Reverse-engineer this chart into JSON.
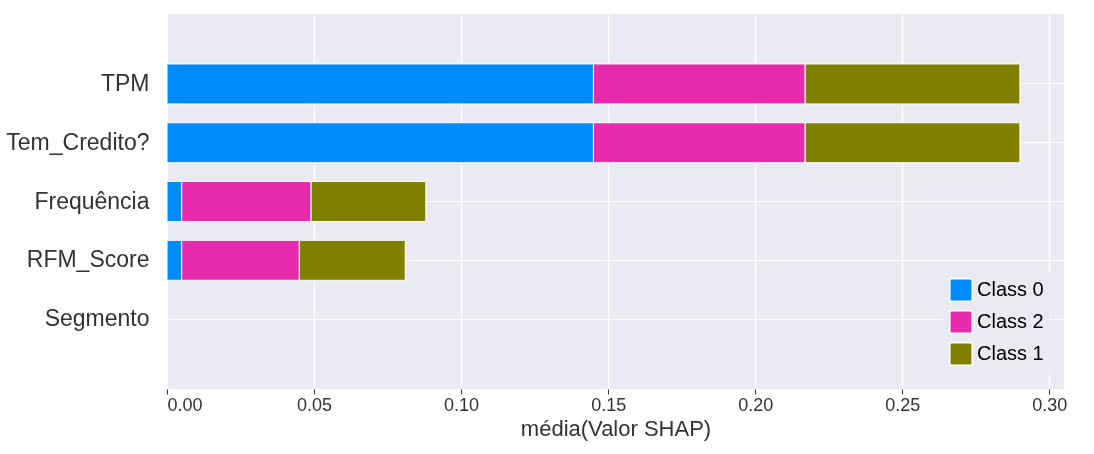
{
  "chart_data": {
    "type": "bar",
    "orientation": "horizontal",
    "stacked": true,
    "xlabel": "média(Valor SHAP)",
    "categories": [
      "TPM",
      "Tem_Credito?",
      "Frequência",
      "RFM_Score",
      "Segmento"
    ],
    "series": [
      {
        "name": "Class 0",
        "color": "#008bfb",
        "values": [
          0.145,
          0.145,
          0.005,
          0.005,
          0
        ]
      },
      {
        "name": "Class 2",
        "color": "#e82bad",
        "values": [
          0.072,
          0.072,
          0.044,
          0.04,
          0
        ]
      },
      {
        "name": "Class 1",
        "color": "#808000",
        "values": [
          0.073,
          0.073,
          0.039,
          0.036,
          0
        ]
      }
    ],
    "xlim": [
      0,
      0.305
    ],
    "xticks": [
      {
        "value": 0,
        "label": "0.00"
      },
      {
        "value": 0.05,
        "label": "0.05"
      },
      {
        "value": 0.1,
        "label": "0.10"
      },
      {
        "value": 0.15,
        "label": "0.15"
      },
      {
        "value": 0.2,
        "label": "0.20"
      },
      {
        "value": 0.25,
        "label": "0.25"
      },
      {
        "value": 0.3,
        "label": "0.30"
      }
    ],
    "grid": true,
    "legend": "bottom right"
  }
}
